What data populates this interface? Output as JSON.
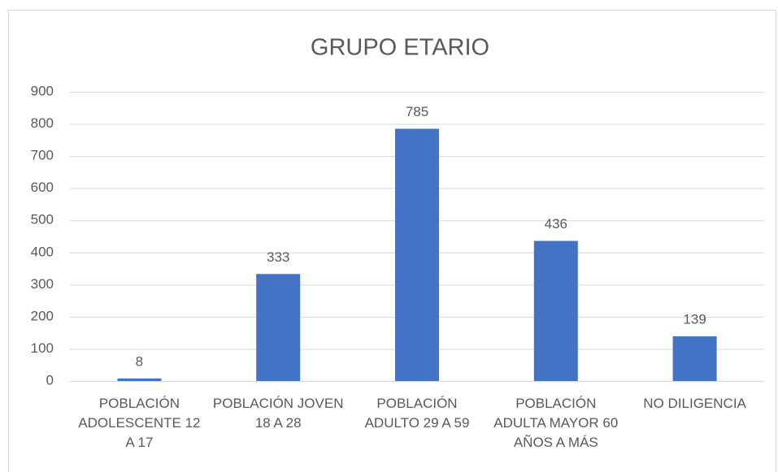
{
  "chart_data": {
    "type": "bar",
    "title": "GRUPO ETARIO",
    "categories": [
      "POBLACIÓN ADOLESCENTE 12 A 17",
      "POBLACIÓN JOVEN 18 A 28",
      "POBLACIÓN ADULTO 29 A 59",
      "POBLACIÓN ADULTA MAYOR 60 AÑOS A MÁS",
      "NO DILIGENCIA"
    ],
    "values": [
      8,
      333,
      785,
      436,
      139
    ],
    "color": "#4472c4",
    "ylim": [
      0,
      900
    ],
    "yticks": [
      0,
      100,
      200,
      300,
      400,
      500,
      600,
      700,
      800,
      900
    ],
    "grid": true,
    "data_labels": true
  }
}
